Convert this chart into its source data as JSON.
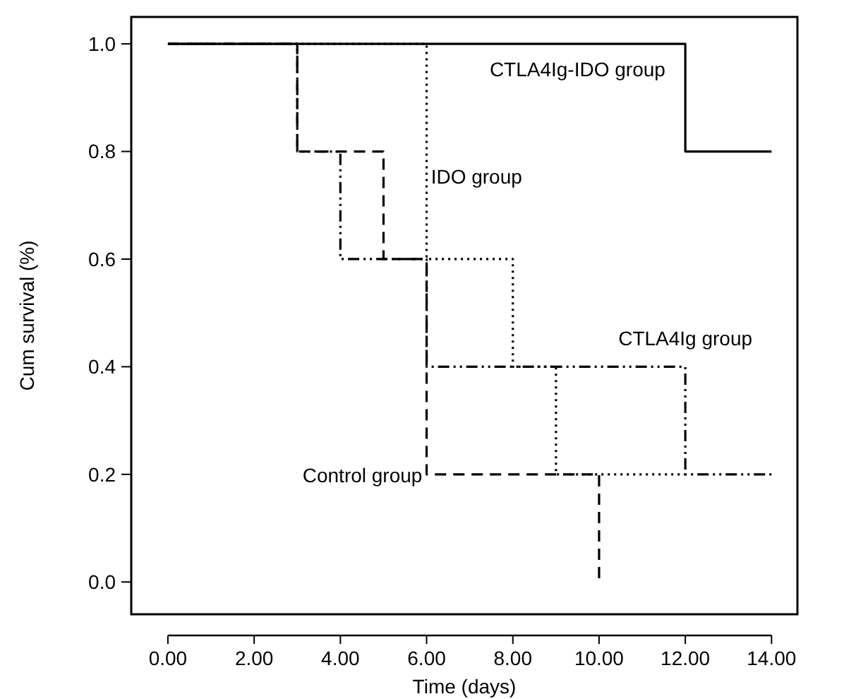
{
  "chart_data": {
    "type": "step",
    "xlabel": "Time (days)",
    "ylabel": "Cum survival (%)",
    "xlim": [
      -0.85,
      14.6
    ],
    "ylim": [
      -0.06,
      1.05
    ],
    "xticks": [
      {
        "value": 0,
        "label": "0.00"
      },
      {
        "value": 2,
        "label": "2.00"
      },
      {
        "value": 4,
        "label": "4.00"
      },
      {
        "value": 6,
        "label": "6.00"
      },
      {
        "value": 8,
        "label": "8.00"
      },
      {
        "value": 10,
        "label": "10.00"
      },
      {
        "value": 12,
        "label": "12.00"
      },
      {
        "value": 14,
        "label": "14.00"
      }
    ],
    "yticks": [
      {
        "value": 0,
        "label": "0.0"
      },
      {
        "value": 0.2,
        "label": "0.2"
      },
      {
        "value": 0.4,
        "label": "0.4"
      },
      {
        "value": 0.6,
        "label": "0.6"
      },
      {
        "value": 0.8,
        "label": "0.8"
      },
      {
        "value": 1,
        "label": "1.0"
      }
    ],
    "grid": false,
    "marker": "none",
    "series": [
      {
        "name": "CTLA4Ig-IDO group",
        "color": "#000000",
        "line_style": "solid",
        "x": [
          0,
          12,
          14
        ],
        "values": [
          1,
          0.8,
          0.8
        ]
      },
      {
        "name": "IDO group",
        "color": "#000000",
        "line_style": "dotted",
        "x": [
          0,
          6,
          8,
          9,
          12
        ],
        "values": [
          1,
          0.6,
          0.4,
          0.2,
          0.2
        ]
      },
      {
        "name": "CTLA4Ig group",
        "color": "#000000",
        "line_style": "dashdot",
        "x": [
          0,
          3,
          4,
          6,
          12,
          14
        ],
        "values": [
          1,
          0.8,
          0.6,
          0.4,
          0.2,
          0.2
        ]
      },
      {
        "name": "Control group",
        "color": "#000000",
        "line_style": "dashed",
        "x": [
          0,
          3,
          5,
          6,
          10
        ],
        "values": [
          1,
          0.8,
          0.6,
          0.2,
          0
        ]
      }
    ]
  }
}
